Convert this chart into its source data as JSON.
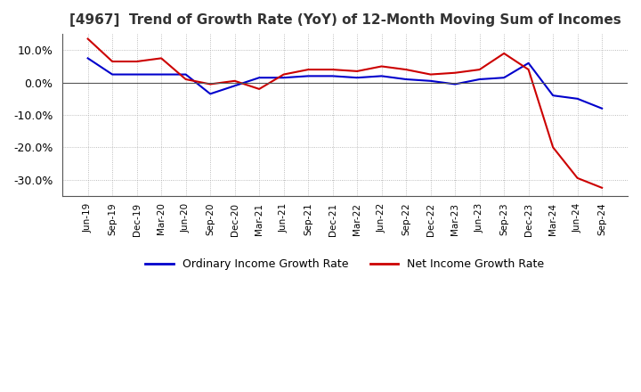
{
  "title": "[4967]  Trend of Growth Rate (YoY) of 12-Month Moving Sum of Incomes",
  "title_fontsize": 11,
  "ylim": [
    -0.35,
    0.15
  ],
  "yticks": [
    0.1,
    0.0,
    -0.1,
    -0.2,
    -0.3
  ],
  "background_color": "#ffffff",
  "plot_bg_color": "#ffffff",
  "grid_color": "#aaaaaa",
  "ordinary_color": "#0000cc",
  "net_color": "#cc0000",
  "legend_ordinary": "Ordinary Income Growth Rate",
  "legend_net": "Net Income Growth Rate",
  "x_labels": [
    "Jun-19",
    "Sep-19",
    "Dec-19",
    "Mar-20",
    "Jun-20",
    "Sep-20",
    "Dec-20",
    "Mar-21",
    "Jun-21",
    "Sep-21",
    "Dec-21",
    "Mar-22",
    "Jun-22",
    "Sep-22",
    "Dec-22",
    "Mar-23",
    "Jun-23",
    "Sep-23",
    "Dec-23",
    "Mar-24",
    "Jun-24",
    "Sep-24"
  ],
  "ordinary_income_growth": [
    0.075,
    0.025,
    0.025,
    0.025,
    0.025,
    -0.035,
    -0.01,
    0.015,
    0.015,
    0.02,
    0.02,
    0.015,
    0.02,
    0.01,
    0.005,
    -0.005,
    0.01,
    0.015,
    0.06,
    -0.04,
    -0.05,
    -0.08
  ],
  "net_income_growth": [
    0.135,
    0.065,
    0.065,
    0.075,
    0.01,
    -0.005,
    0.005,
    -0.02,
    0.025,
    0.04,
    0.04,
    0.035,
    0.05,
    0.04,
    0.025,
    0.03,
    0.04,
    0.09,
    0.04,
    -0.2,
    -0.295,
    -0.325
  ]
}
